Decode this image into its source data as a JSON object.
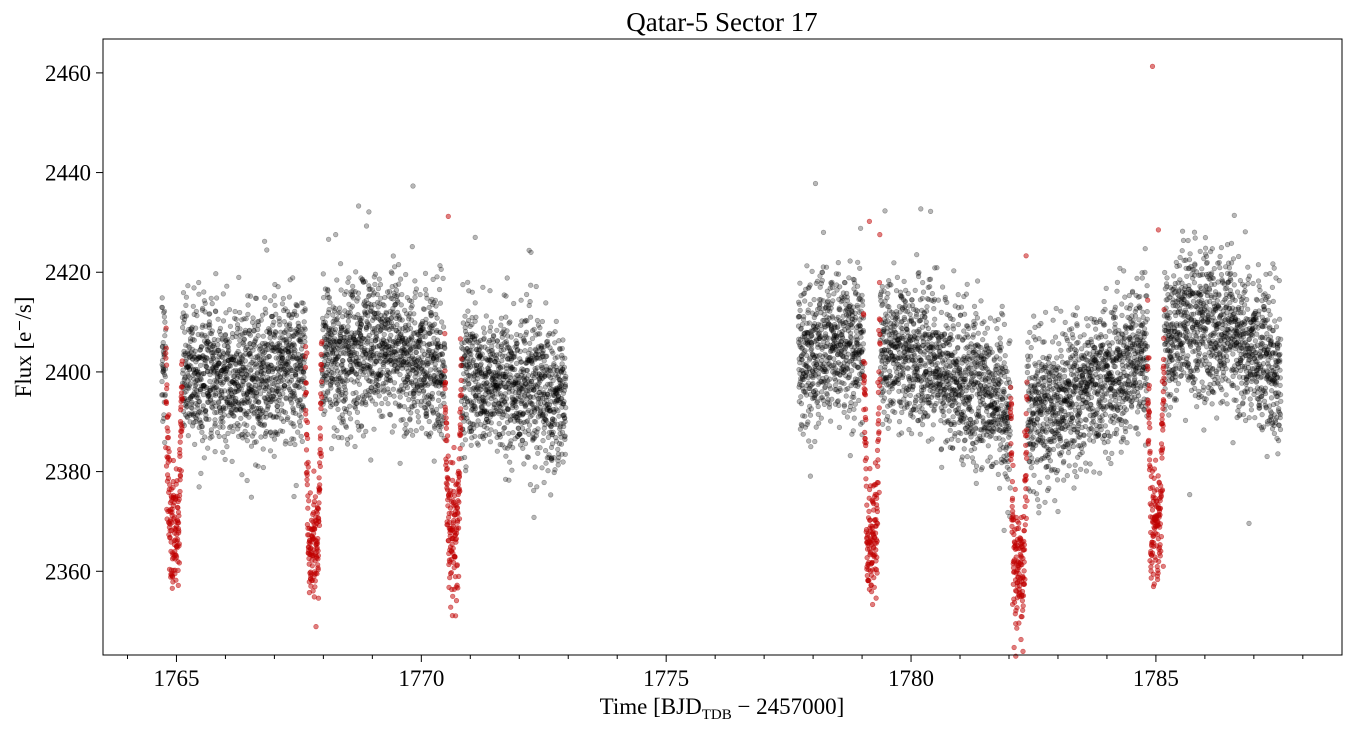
{
  "chart_data": {
    "type": "scatter",
    "title": "Qatar-5 Sector 17",
    "xlabel_main": "Time [BJD",
    "xlabel_sub": "TDB",
    "xlabel_tail": " − 2457000]",
    "ylabel": "Flux [e⁻/s]",
    "xlim": [
      1763.5,
      1788.8
    ],
    "ylim": [
      2343.2,
      2466.8
    ],
    "x_ticks": [
      1765,
      1770,
      1775,
      1780,
      1785
    ],
    "x_tick_labels": [
      "1765",
      "1770",
      "1775",
      "1780",
      "1785"
    ],
    "x_minor_tick_step": 1,
    "y_ticks": [
      2360,
      2380,
      2400,
      2420,
      2440,
      2460
    ],
    "y_tick_labels": [
      "2360",
      "2380",
      "2400",
      "2420",
      "2440",
      "2460"
    ],
    "grid": false,
    "series": [
      {
        "role": "out-of-transit",
        "color": "#000000",
        "opacity": 0.28,
        "segments": [
          {
            "x_start": 1764.7,
            "x_end": 1772.95
          },
          {
            "x_start": 1777.7,
            "x_end": 1787.55
          }
        ],
        "trend_points": [
          [
            1764.7,
            2401
          ],
          [
            1766.5,
            2398
          ],
          [
            1768.0,
            2403
          ],
          [
            1769.0,
            2405
          ],
          [
            1771.0,
            2399
          ],
          [
            1772.95,
            2395
          ],
          [
            1777.7,
            2403
          ],
          [
            1779.0,
            2406
          ],
          [
            1780.0,
            2404
          ],
          [
            1781.0,
            2399
          ],
          [
            1782.3,
            2390
          ],
          [
            1783.0,
            2393
          ],
          [
            1784.0,
            2399
          ],
          [
            1785.0,
            2405
          ],
          [
            1785.7,
            2410
          ],
          [
            1786.5,
            2408
          ],
          [
            1787.55,
            2400
          ]
        ],
        "scatter_sd": 7.2,
        "outliers": [
          [
            1769.83,
            2437.3
          ],
          [
            1768.72,
            2433.3
          ],
          [
            1768.93,
            2432.1
          ],
          [
            1778.05,
            2437.8
          ],
          [
            1780.2,
            2432.7
          ],
          [
            1780.4,
            2432.2
          ],
          [
            1786.6,
            2431.4
          ],
          [
            1766.8,
            2426.2
          ],
          [
            1772.2,
            2424.4
          ],
          [
            1771.1,
            2427.0
          ],
          [
            1786.9,
            2369.6
          ],
          [
            1772.3,
            2370.8
          ],
          [
            1767.4,
            2375.0
          ],
          [
            1783.0,
            2372.0
          ],
          [
            1781.9,
            2368.2
          ]
        ]
      },
      {
        "role": "in-transit",
        "color": "#c00000",
        "opacity": 0.5,
        "transits": [
          {
            "center": 1764.95,
            "depth": 2368.0
          },
          {
            "center": 1767.8,
            "depth": 2365.0
          },
          {
            "center": 1770.65,
            "depth": 2367.0
          },
          {
            "center": 1779.2,
            "depth": 2366.0
          },
          {
            "center": 1782.2,
            "depth": 2359.0
          },
          {
            "center": 1785.0,
            "depth": 2370.0
          }
        ],
        "transit_half_width": 0.17,
        "outliers": [
          [
            1784.93,
            2461.3
          ],
          [
            1770.55,
            2431.2
          ],
          [
            1779.15,
            2430.2
          ],
          [
            1767.85,
            2348.9
          ],
          [
            1767.9,
            2354.6
          ],
          [
            1770.6,
            2352.8
          ],
          [
            1764.9,
            2359.2
          ],
          [
            1782.25,
            2350.9
          ],
          [
            1779.3,
            2362.8
          ],
          [
            1785.15,
            2361.0
          ],
          [
            1782.35,
            2423.3
          ],
          [
            1785.05,
            2428.5
          ]
        ]
      }
    ]
  }
}
